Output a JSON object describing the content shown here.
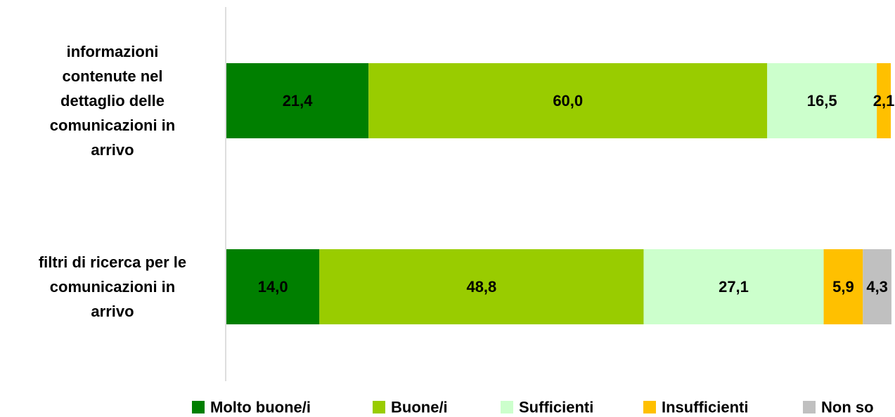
{
  "chart_data": {
    "type": "bar",
    "orientation": "horizontal",
    "stacked": true,
    "percent": true,
    "title": "",
    "xlabel": "",
    "ylabel": "",
    "xlim": [
      0,
      100
    ],
    "grid": false,
    "legend_position": "bottom",
    "categories": [
      "informazioni contenute nel dettaglio delle comunicazioni in arrivo",
      "filtri di ricerca per le comunicazioni in arrivo"
    ],
    "category_lines": [
      [
        "informazioni",
        "contenute nel",
        "dettaglio delle",
        "comunicazioni in",
        "arrivo"
      ],
      [
        "filtri di ricerca per le",
        "comunicazioni in",
        "arrivo"
      ]
    ],
    "series": [
      {
        "name": "Molto buone/i",
        "color": "#007F00",
        "values": [
          21.4,
          14.0
        ],
        "labels": [
          "21,4",
          "14,0"
        ]
      },
      {
        "name": "Buone/i",
        "color": "#99CC00",
        "values": [
          60.0,
          48.8
        ],
        "labels": [
          "60,0",
          "48,8"
        ]
      },
      {
        "name": "Sufficienti",
        "color": "#CCFFCC",
        "values": [
          16.5,
          27.1
        ],
        "labels": [
          "16,5",
          "27,1"
        ]
      },
      {
        "name": "Insufficienti",
        "color": "#FFC000",
        "values": [
          2.1,
          5.9
        ],
        "labels": [
          "2,1",
          "5,9"
        ]
      },
      {
        "name": "Non so",
        "color": "#C0C0C0",
        "values": [
          0,
          4.3
        ],
        "labels": [
          "",
          "4,3"
        ]
      }
    ]
  }
}
